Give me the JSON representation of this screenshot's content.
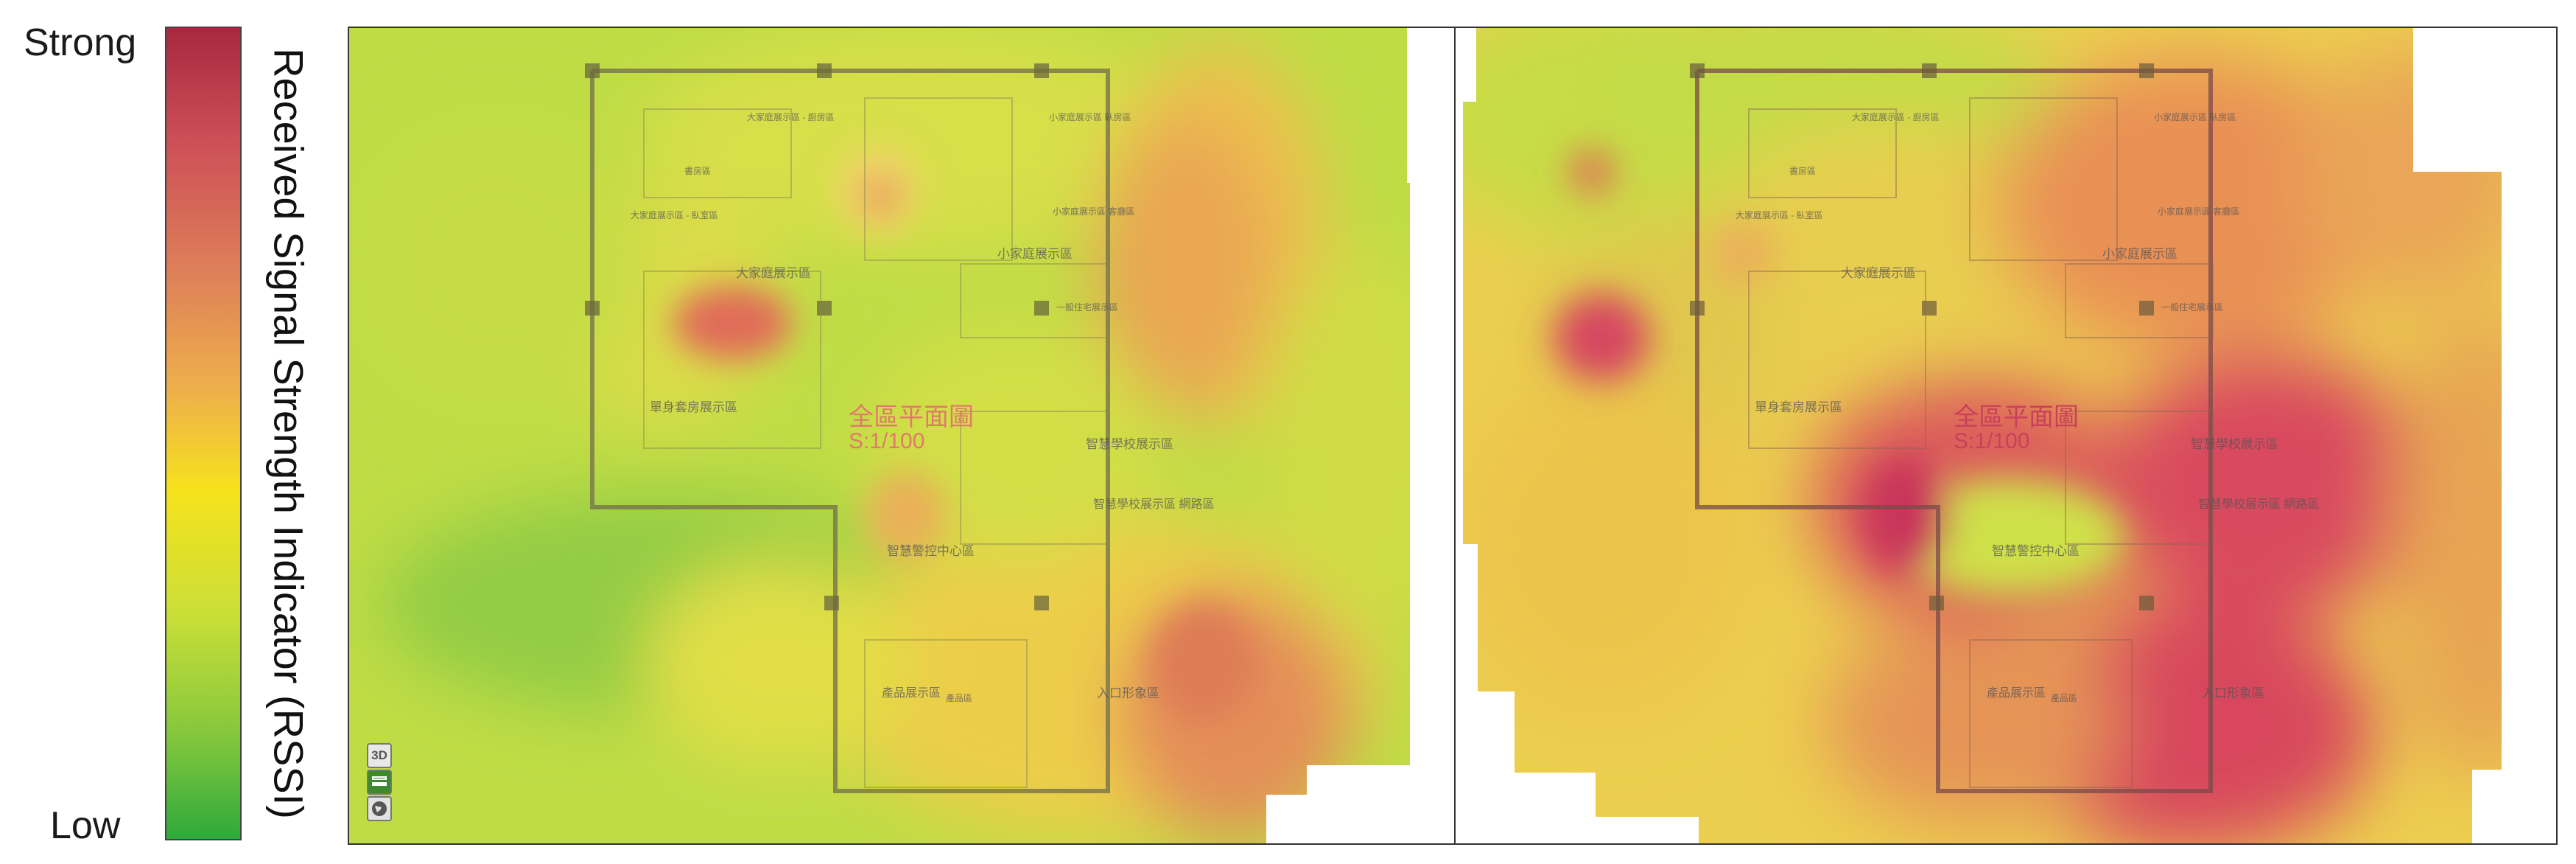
{
  "legend": {
    "strong_label": "Strong",
    "low_label": "Low",
    "scale_title": "Received Signal Strength Indicator (RSSI)",
    "gradient_colors": [
      "#a8283f",
      "#cd4f57",
      "#de7f59",
      "#eeb14a",
      "#f6e21c",
      "#cbdf37",
      "#80c63d",
      "#2ea93b"
    ]
  },
  "floor_plan": {
    "title": "全區平面圖",
    "scale": "S:1/100",
    "rooms": [
      "大家庭展示區 - 廚房區",
      "小家庭展示區 臥房區",
      "書房區",
      "大家庭展示區 - 臥室區",
      "小家庭展示區 客廳區",
      "大家庭展示區",
      "小家庭展示區",
      "一般住宅展示區",
      "單身套房展示區",
      "智慧學校展示區",
      "智慧學校展示區 網路區",
      "智慧警控中心區",
      "產品展示區",
      "產品區",
      "入口形象區"
    ]
  },
  "map_controls": {
    "mode_3d": "3D",
    "layers_icon": "layers-icon",
    "globe_icon": "globe-icon"
  },
  "panels": [
    {
      "name": "heatmap-left"
    },
    {
      "name": "heatmap-right"
    }
  ]
}
